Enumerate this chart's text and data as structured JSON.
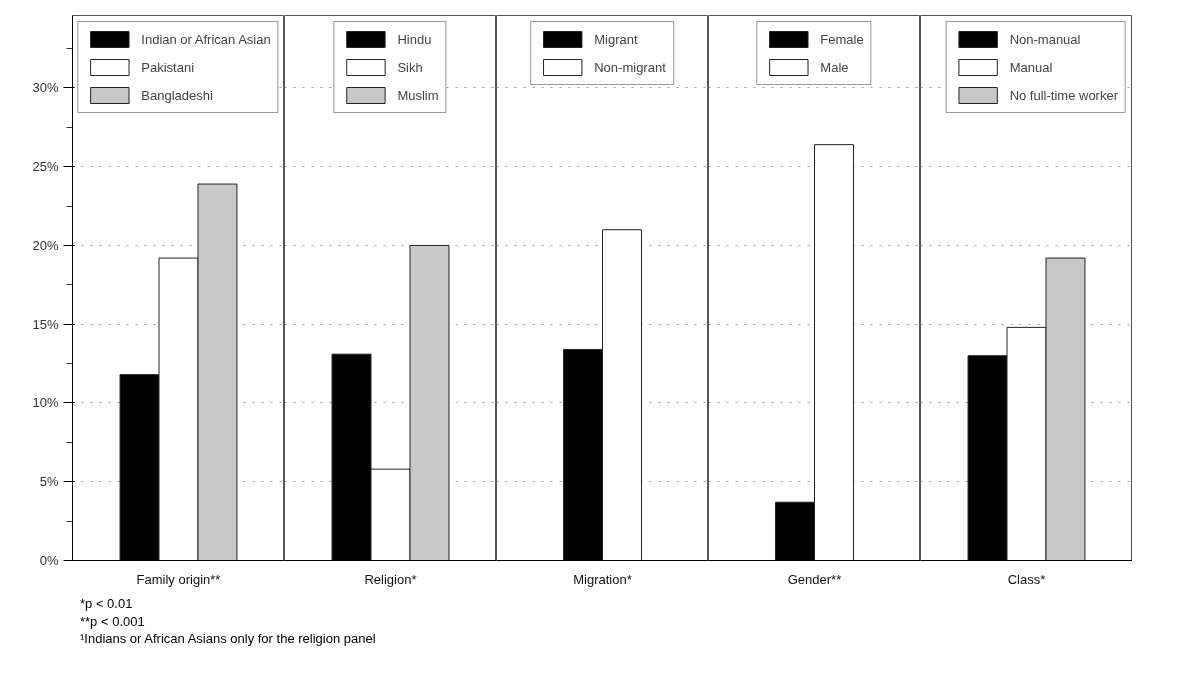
{
  "chart_data": [
    {
      "type": "bar",
      "categories": [
        "Family origin**"
      ],
      "series": [
        {
          "name": "Indian or African Asian",
          "color": "#000000",
          "values": [
            11.8
          ]
        },
        {
          "name": "Pakistani",
          "color": "#ffffff",
          "values": [
            19.2
          ]
        },
        {
          "name": "Bangladeshi",
          "color": "#c8c8c8",
          "values": [
            23.9
          ]
        }
      ],
      "ylim": [
        0,
        34.6
      ],
      "yticks": [
        {
          "value": 0,
          "label": "0%"
        },
        {
          "value": 2.5,
          "label": null
        },
        {
          "value": 5,
          "label": "5%"
        },
        {
          "value": 7.5,
          "label": null
        },
        {
          "value": 10,
          "label": "10%"
        },
        {
          "value": 12.5,
          "label": null
        },
        {
          "value": 15,
          "label": "15%"
        },
        {
          "value": 17.5,
          "label": null
        },
        {
          "value": 20,
          "label": "20%"
        },
        {
          "value": 22.5,
          "label": null
        },
        {
          "value": 25,
          "label": "25%"
        },
        {
          "value": 27.5,
          "label": null
        },
        {
          "value": 30,
          "label": "30%"
        },
        {
          "value": 32.5,
          "label": null
        }
      ],
      "grid": "y",
      "legend": "top",
      "annotations": [
        "*p < 0.01",
        "**p < 0.001",
        "¹Indians or African Asians only for the religion panel"
      ]
    },
    {
      "type": "bar",
      "categories": [
        "Religion*"
      ],
      "series": [
        {
          "name": "Hindu",
          "color": "#000000",
          "values": [
            13.1
          ]
        },
        {
          "name": "Sikh",
          "color": "#ffffff",
          "values": [
            5.8
          ]
        },
        {
          "name": "Muslim",
          "color": "#c8c8c8",
          "values": [
            20.0
          ]
        }
      ],
      "ylim": [
        0,
        34.6
      ],
      "yticks": [
        5,
        10,
        15,
        20,
        25,
        30
      ],
      "grid": "y",
      "legend": "top",
      "tick_labels": "x"
    },
    {
      "type": "bar",
      "categories": [
        "Migration*"
      ],
      "series": [
        {
          "name": "Migrant",
          "color": "#000000",
          "values": [
            13.4
          ]
        },
        {
          "name": "Non-migrant",
          "color": "#ffffff",
          "values": [
            21.0
          ]
        }
      ],
      "ylim": [
        0,
        34.6
      ],
      "yticks": [
        5,
        10,
        15,
        20,
        25,
        30
      ],
      "grid": "y",
      "legend": "top",
      "tick_labels": "x"
    },
    {
      "type": "bar",
      "categories": [
        "Gender**"
      ],
      "series": [
        {
          "name": "Female",
          "color": "#000000",
          "values": [
            3.7
          ]
        },
        {
          "name": "Male",
          "color": "#ffffff",
          "values": [
            26.4
          ]
        }
      ],
      "ylim": [
        0,
        34.6
      ],
      "yticks": [
        5,
        10,
        15,
        20,
        25,
        30
      ],
      "grid": "y",
      "legend": "top",
      "tick_labels": "x"
    },
    {
      "type": "bar",
      "categories": [
        "Class*"
      ],
      "series": [
        {
          "name": "Non-manual",
          "color": "#000000",
          "values": [
            13.0
          ]
        },
        {
          "name": "Manual",
          "color": "#ffffff",
          "values": [
            14.8
          ]
        },
        {
          "name": "No full-time worker",
          "color": "#c8c8c8",
          "values": [
            19.2
          ]
        }
      ],
      "ylim": [
        0,
        34.6
      ],
      "yticks": [
        5,
        10,
        15,
        20,
        25,
        30
      ],
      "grid": "y",
      "legend": "top right",
      "tick_labels": "x"
    }
  ]
}
